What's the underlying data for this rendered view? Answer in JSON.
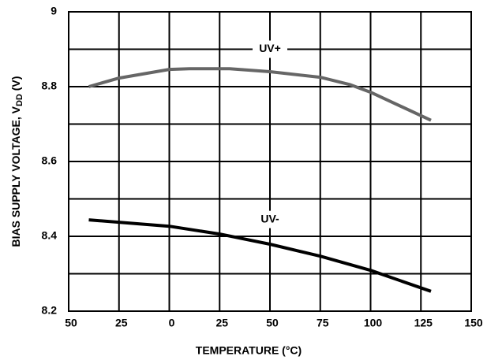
{
  "chart_data": {
    "type": "line",
    "x_label": "TEMPERATURE (°C)",
    "y_label": {
      "text": "BIAS SUPPLY VOLTAGE, V",
      "subscript": "DD",
      "suffix": " (V)"
    },
    "xlim": [
      -50,
      150
    ],
    "xticks": [
      {
        "value": -50,
        "label": "50"
      },
      {
        "value": -25,
        "label": "25"
      },
      0,
      25,
      50,
      75,
      100,
      125,
      150
    ],
    "ylim": [
      8.2,
      9
    ],
    "yticks": [
      8.2,
      8.4,
      8.6,
      8.8,
      9
    ],
    "yminorticks": [
      8.3,
      8.5,
      8.7,
      8.9
    ],
    "grid": true,
    "series": [
      {
        "name": "UV+",
        "color": "#666666",
        "x": [
          -40,
          -25,
          0,
          10,
          30,
          50,
          75,
          90,
          100,
          130
        ],
        "values": [
          8.8,
          8.823,
          8.846,
          8.848,
          8.848,
          8.84,
          8.825,
          8.805,
          8.785,
          8.71
        ]
      },
      {
        "name": "UV-",
        "color": "#000000",
        "x": [
          -40,
          0,
          25,
          50,
          75,
          100,
          130
        ],
        "values": [
          8.444,
          8.427,
          8.406,
          8.379,
          8.347,
          8.309,
          8.253
        ]
      }
    ],
    "annotations": [
      {
        "text": "UV+",
        "x": 50,
        "y": 8.9
      },
      {
        "text": "UV-",
        "x": 50,
        "y": 8.445
      }
    ]
  }
}
